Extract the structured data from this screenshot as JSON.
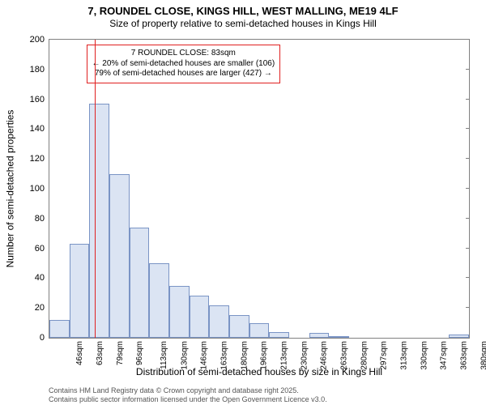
{
  "title": {
    "main": "7, ROUNDEL CLOSE, KINGS HILL, WEST MALLING, ME19 4LF",
    "sub": "Size of property relative to semi-detached houses in Kings Hill"
  },
  "chart": {
    "type": "histogram",
    "y_label": "Number of semi-detached properties",
    "x_label": "Distribution of semi-detached houses by size in Kings Hill",
    "ylim": [
      0,
      200
    ],
    "ytick_step": 20,
    "background_color": "#ffffff",
    "border_color": "#808080",
    "bar_fill": "#dbe4f3",
    "bar_border": "#7a94c5",
    "ref_line_color": "#e02020",
    "x_ticks": [
      "46sqm",
      "63sqm",
      "79sqm",
      "96sqm",
      "113sqm",
      "130sqm",
      "146sqm",
      "163sqm",
      "180sqm",
      "196sqm",
      "213sqm",
      "230sqm",
      "246sqm",
      "263sqm",
      "280sqm",
      "297sqm",
      "313sqm",
      "330sqm",
      "347sqm",
      "363sqm",
      "380sqm"
    ],
    "n_bins": 21,
    "values": [
      12,
      63,
      157,
      110,
      74,
      50,
      35,
      28,
      22,
      15,
      10,
      4,
      0,
      3,
      1,
      0,
      0,
      0,
      0,
      0,
      2
    ],
    "reference_bin_index": 2,
    "annotation": {
      "line1": "7 ROUNDEL CLOSE: 83sqm",
      "line2": "← 20% of semi-detached houses are smaller (106)",
      "line3": "79% of semi-detached houses are larger (427) →"
    }
  },
  "footer": {
    "line1": "Contains HM Land Registry data © Crown copyright and database right 2025.",
    "line2": "Contains public sector information licensed under the Open Government Licence v3.0."
  }
}
